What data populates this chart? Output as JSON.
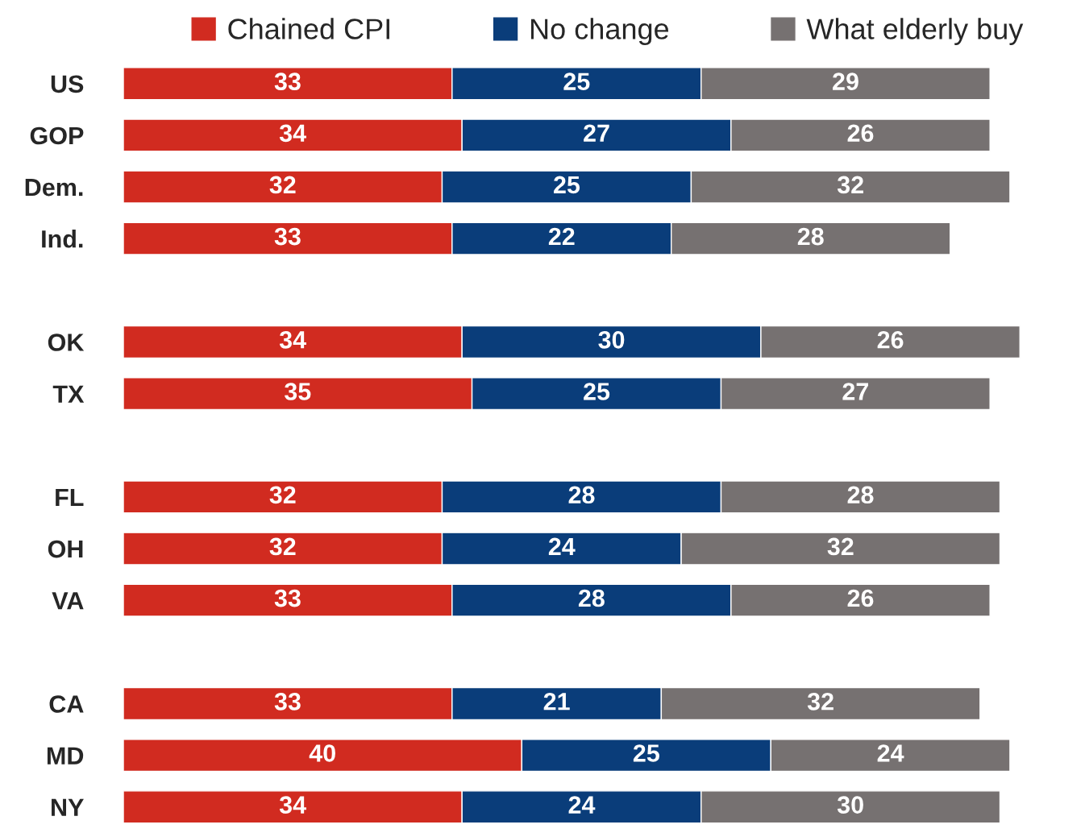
{
  "chart_data": {
    "type": "bar",
    "orientation": "horizontal",
    "stacked": true,
    "data_labels": true,
    "legend": "top",
    "categories": [
      "US",
      "GOP",
      "Dem.",
      "Ind.",
      null,
      "OK",
      "TX",
      null,
      "FL",
      "OH",
      "VA",
      null,
      "CA",
      "MD",
      "NY"
    ],
    "series": [
      {
        "name": "Chained CPI",
        "color": "#d12b20",
        "values": [
          33,
          34,
          32,
          33,
          null,
          34,
          35,
          null,
          32,
          32,
          33,
          null,
          33,
          40,
          34
        ]
      },
      {
        "name": "No change",
        "color": "#0a3d7a",
        "values": [
          25,
          27,
          25,
          22,
          null,
          30,
          25,
          null,
          28,
          24,
          28,
          null,
          21,
          25,
          24
        ]
      },
      {
        "name": "What elderly buy",
        "color": "#767171",
        "values": [
          29,
          26,
          32,
          28,
          null,
          26,
          27,
          null,
          28,
          32,
          26,
          null,
          32,
          24,
          30
        ]
      }
    ]
  }
}
